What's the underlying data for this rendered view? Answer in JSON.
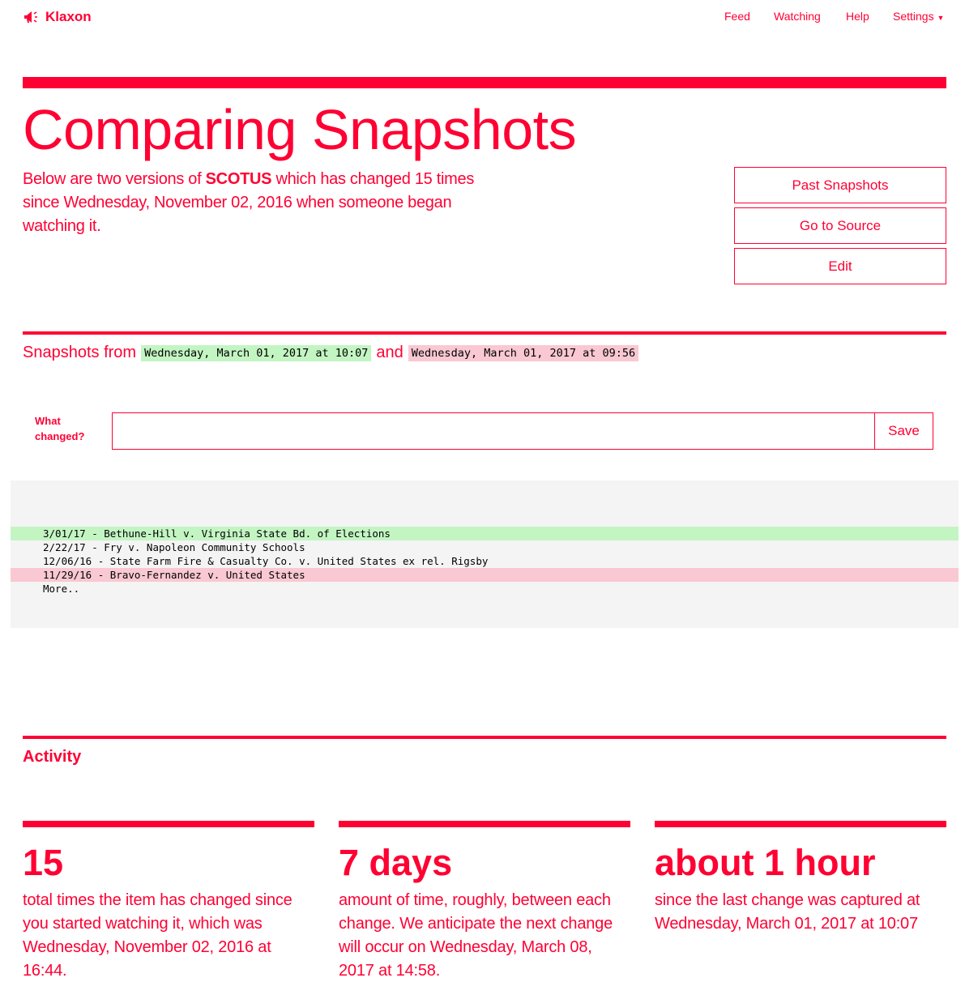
{
  "brand": {
    "name": "Klaxon",
    "accent": "#ff0033"
  },
  "nav": {
    "feed": "Feed",
    "watching": "Watching",
    "help": "Help",
    "settings": "Settings"
  },
  "header": {
    "title": "Comparing Snapshots",
    "intro_pre": "Below are two versions of ",
    "item": "SCOTUS",
    "intro_post": " which has changed 15 times since Wednesday, November 02, 2016 when someone began watching it."
  },
  "actions": {
    "past": "Past Snapshots",
    "source": "Go to Source",
    "edit": "Edit"
  },
  "snapshots": {
    "label": "Snapshots from",
    "newer": "Wednesday, March 01, 2017 at 10:07",
    "and": "and",
    "older": "Wednesday, March 01, 2017 at 09:56"
  },
  "form": {
    "label": "What changed?",
    "value": "",
    "save": "Save"
  },
  "diff": [
    {
      "text": "3/01/17 - Bethune-Hill v. Virginia State Bd. of Elections",
      "status": "added"
    },
    {
      "text": "2/22/17 - Fry v. Napoleon Community Schools",
      "status": "unchanged"
    },
    {
      "text": "12/06/16 - State Farm Fire & Casualty Co. v. United States ex rel. Rigsby",
      "status": "unchanged"
    },
    {
      "text": "11/29/16 - Bravo-Fernandez v. United States",
      "status": "removed"
    },
    {
      "text": "More..",
      "status": "unchanged"
    }
  ],
  "activity": {
    "title": "Activity",
    "stats": [
      {
        "value": "15",
        "text": "total times the item has changed since you started watching it, which was Wednesday, November 02, 2016 at 16:44."
      },
      {
        "value": "7 days",
        "text": "amount of time, roughly, between each change. We anticipate the next change will occur on Wednesday, March 08, 2017 at 14:58."
      },
      {
        "value": "about 1 hour",
        "text": "since the last change was captured at Wednesday, March 01, 2017 at 10:07"
      }
    ]
  }
}
